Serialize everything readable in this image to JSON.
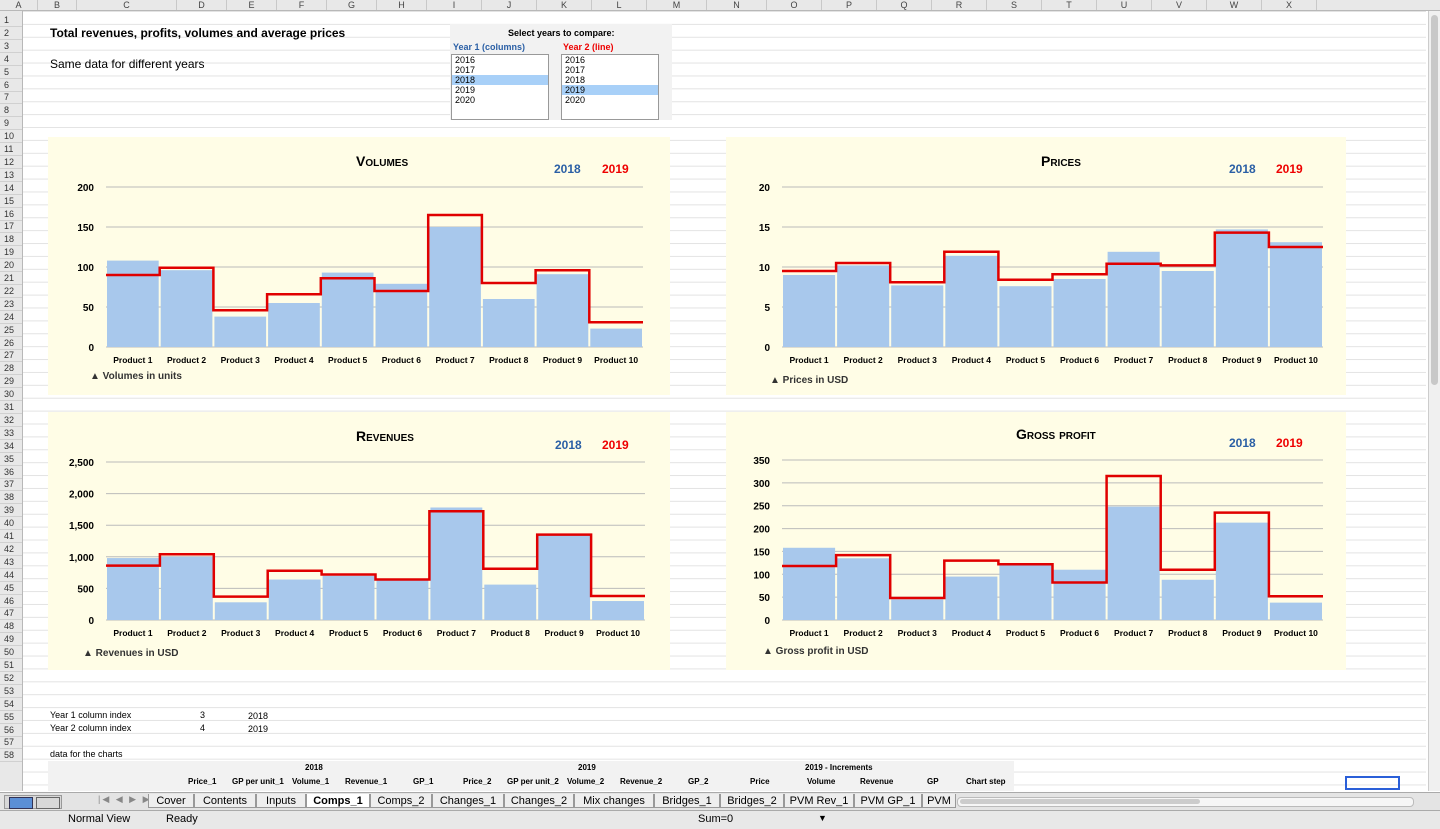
{
  "columns": [
    "A",
    "B",
    "C",
    "D",
    "E",
    "F",
    "G",
    "H",
    "I",
    "J",
    "K",
    "L",
    "M",
    "N",
    "O",
    "P",
    "Q",
    "R",
    "S",
    "T",
    "U",
    "V",
    "W",
    "X"
  ],
  "rows": [
    "1",
    "2",
    "3",
    "4",
    "5",
    "6",
    "7",
    "8",
    "9",
    "10",
    "11",
    "12",
    "13",
    "14",
    "15",
    "16",
    "17",
    "18",
    "19",
    "20",
    "21",
    "22",
    "23",
    "24",
    "25",
    "26",
    "27",
    "28",
    "29",
    "30",
    "31",
    "32",
    "33",
    "34",
    "35",
    "36",
    "37",
    "38",
    "39",
    "40",
    "41",
    "42",
    "43",
    "44",
    "45",
    "46",
    "47",
    "48",
    "49",
    "50",
    "51",
    "52",
    "53",
    "54",
    "55",
    "56",
    "57",
    "58"
  ],
  "sheet": {
    "title": "Total revenues, profits, volumes and average prices",
    "subtitle": "Same data for different years",
    "selector_title": "Select years to compare:",
    "year1_label": "Year 1 (columns)",
    "year2_label": "Year 2 (line)",
    "years": [
      "2016",
      "2017",
      "2018",
      "2019",
      "2020"
    ],
    "year1_index_label": "Year 1 column index",
    "year2_index_label": "Year 2 column index",
    "year1_index": "3",
    "year2_index": "4",
    "year1_value": "2018",
    "year2_value": "2019",
    "data_label": "data for the charts",
    "group_2018": "2018",
    "group_2019": "2019",
    "group_incr": "2019 - Increments",
    "hdr_price1": "Price_1",
    "hdr_gp1": "GP per unit_1",
    "hdr_vol1": "Volume_1",
    "hdr_rev1": "Revenue_1",
    "hdr_gpp1": "GP_1",
    "hdr_price2": "Price_2",
    "hdr_gp2": "GP per unit_2",
    "hdr_vol2": "Volume_2",
    "hdr_rev2": "Revenue_2",
    "hdr_gpp2": "GP_2",
    "hdr_price": "Price",
    "hdr_volume": "Volume",
    "hdr_revenue": "Revenue",
    "hdr_gp": "GP",
    "hdr_chartstep": "Chart step"
  },
  "legend": {
    "year1": "2018",
    "year2": "2019",
    "year1_color": "#2a5fa5",
    "year2_color": "#e00000"
  },
  "chart_data": [
    {
      "type": "bar",
      "title": "Volumes",
      "note": "▲ Volumes in units",
      "categories": [
        "Product 1",
        "Product 2",
        "Product 3",
        "Product 4",
        "Product 5",
        "Product 6",
        "Product 7",
        "Product 8",
        "Product 9",
        "Product 10"
      ],
      "ylim": [
        0,
        200
      ],
      "yticks": [
        0,
        50,
        100,
        150,
        200
      ],
      "ytick_labels": [
        "0",
        "50",
        "100",
        "150",
        "200"
      ],
      "series": [
        {
          "name": "2018",
          "kind": "bar",
          "values": [
            108,
            96,
            38,
            55,
            93,
            79,
            150,
            60,
            91,
            23
          ]
        },
        {
          "name": "2019",
          "kind": "step",
          "values": [
            90,
            99,
            46,
            66,
            86,
            70,
            165,
            80,
            96,
            31
          ]
        }
      ]
    },
    {
      "type": "bar",
      "title": "Prices",
      "note": "▲ Prices in USD",
      "categories": [
        "Product 1",
        "Product 2",
        "Product 3",
        "Product 4",
        "Product 5",
        "Product 6",
        "Product 7",
        "Product 8",
        "Product 9",
        "Product 10"
      ],
      "ylim": [
        0,
        20
      ],
      "yticks": [
        0,
        5,
        10,
        15,
        20
      ],
      "ytick_labels": [
        "0",
        "5",
        "10",
        "15",
        "20"
      ],
      "series": [
        {
          "name": "2018",
          "kind": "bar",
          "values": [
            9.0,
            10.2,
            7.7,
            11.4,
            7.6,
            8.5,
            11.9,
            9.5,
            14.7,
            13.1
          ]
        },
        {
          "name": "2019",
          "kind": "step",
          "values": [
            9.5,
            10.5,
            8.1,
            11.9,
            8.4,
            9.1,
            10.4,
            10.2,
            14.3,
            12.5
          ]
        }
      ]
    },
    {
      "type": "bar",
      "title": "Revenues",
      "note": "▲ Revenues in USD",
      "categories": [
        "Product 1",
        "Product 2",
        "Product 3",
        "Product 4",
        "Product 5",
        "Product 6",
        "Product 7",
        "Product 8",
        "Product 9",
        "Product 10"
      ],
      "ylim": [
        0,
        2500
      ],
      "yticks": [
        0,
        500,
        1000,
        1500,
        2000,
        2500
      ],
      "ytick_labels": [
        "0",
        "500",
        "1,000",
        "1,500",
        "2,000",
        "2,500"
      ],
      "series": [
        {
          "name": "2018",
          "kind": "bar",
          "values": [
            980,
            1000,
            280,
            640,
            700,
            640,
            1780,
            560,
            1340,
            300
          ]
        },
        {
          "name": "2019",
          "kind": "step",
          "values": [
            860,
            1040,
            370,
            780,
            720,
            640,
            1720,
            810,
            1350,
            380
          ]
        }
      ]
    },
    {
      "type": "bar",
      "title": "Gross profit",
      "note": "▲ Gross profit in USD",
      "categories": [
        "Product 1",
        "Product 2",
        "Product 3",
        "Product 4",
        "Product 5",
        "Product 6",
        "Product 7",
        "Product 8",
        "Product 9",
        "Product 10"
      ],
      "ylim": [
        0,
        350
      ],
      "yticks": [
        0,
        50,
        100,
        150,
        200,
        250,
        300,
        350
      ],
      "ytick_labels": [
        "0",
        "50",
        "100",
        "150",
        "200",
        "250",
        "300",
        "350"
      ],
      "series": [
        {
          "name": "2018",
          "kind": "bar",
          "values": [
            158,
            135,
            45,
            95,
            120,
            110,
            248,
            88,
            213,
            38
          ]
        },
        {
          "name": "2019",
          "kind": "step",
          "values": [
            118,
            142,
            48,
            130,
            122,
            82,
            315,
            110,
            235,
            52
          ]
        }
      ]
    }
  ],
  "tabs": [
    "Cover",
    "Contents",
    "Inputs",
    "Comps_1",
    "Comps_2",
    "Changes_1",
    "Changes_2",
    "Mix changes",
    "Bridges_1",
    "Bridges_2",
    "PVM Rev_1",
    "PVM GP_1",
    "PVM"
  ],
  "active_tab": "Comps_1",
  "status": {
    "view": "Normal View",
    "state": "Ready",
    "sum": "Sum=0"
  },
  "colors": {
    "bar": "#a8c8ec",
    "line": "#e00000",
    "plot_bg": "#fffde6"
  }
}
